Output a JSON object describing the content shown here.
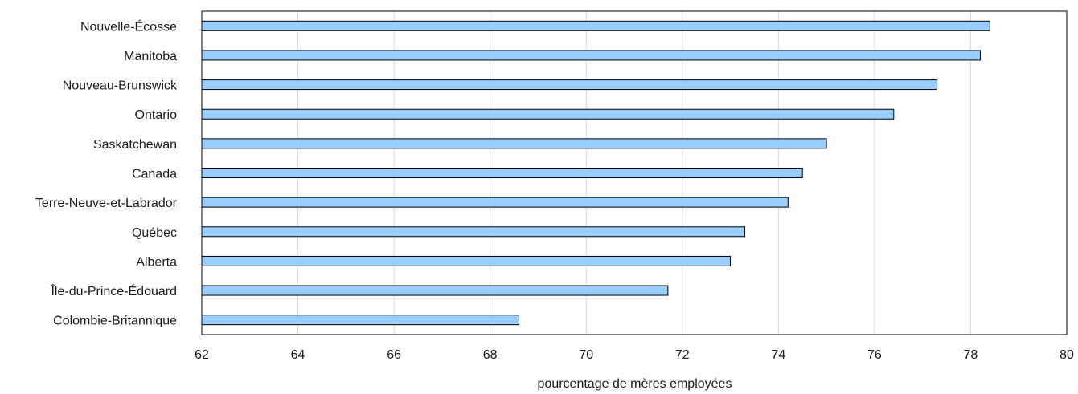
{
  "chart_data": {
    "type": "bar",
    "orientation": "horizontal",
    "title": "",
    "xlabel": "pourcentage de mères employées",
    "ylabel": "",
    "categories": [
      "Nouvelle-Écosse",
      "Manitoba",
      "Nouveau-Brunswick",
      "Ontario",
      "Saskatchewan",
      "Canada",
      "Terre-Neuve-et-Labrador",
      "Québec",
      "Alberta",
      "Île-du-Prince-Édouard",
      "Colombie-Britannique"
    ],
    "values": [
      78.4,
      78.2,
      77.3,
      76.4,
      75.0,
      74.5,
      74.2,
      73.3,
      73.0,
      71.7,
      68.6
    ],
    "xlim": [
      62,
      80
    ],
    "xticks": [
      62,
      64,
      66,
      68,
      70,
      72,
      74,
      76,
      78,
      80
    ],
    "grid": "vertical",
    "legend": "none",
    "colors": {
      "bar_fill": "#99ccff",
      "bar_stroke": "#000000",
      "grid": "#d9d9d9",
      "frame": "#000000"
    }
  }
}
